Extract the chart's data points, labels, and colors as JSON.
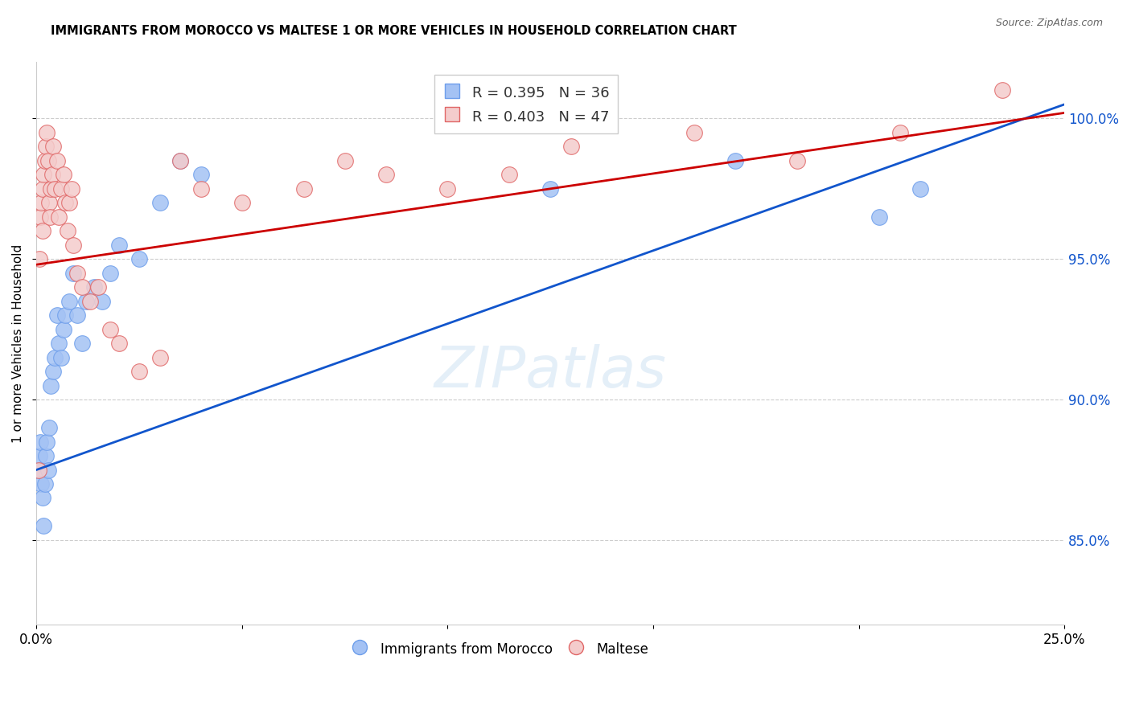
{
  "title": "IMMIGRANTS FROM MOROCCO VS MALTESE 1 OR MORE VEHICLES IN HOUSEHOLD CORRELATION CHART",
  "source": "Source: ZipAtlas.com",
  "ylabel": "1 or more Vehicles in Household",
  "xlim": [
    0.0,
    25.0
  ],
  "ylim": [
    82.0,
    102.0
  ],
  "yticks": [
    85.0,
    90.0,
    95.0,
    100.0
  ],
  "blue_color": "#a4c2f4",
  "pink_color": "#f4cccc",
  "blue_edge_color": "#6d9eeb",
  "pink_edge_color": "#e06666",
  "blue_line_color": "#1155cc",
  "pink_line_color": "#cc0000",
  "right_axis_color": "#1155cc",
  "legend1_label": "Immigrants from Morocco",
  "legend2_label": "Maltese",
  "blue_R": 0.395,
  "blue_N": 36,
  "pink_R": 0.403,
  "pink_N": 47,
  "blue_line_y0": 87.5,
  "blue_line_y1": 100.5,
  "pink_line_y0": 94.8,
  "pink_line_y1": 100.2,
  "blue_scatter_x": [
    0.05,
    0.08,
    0.1,
    0.12,
    0.15,
    0.18,
    0.2,
    0.22,
    0.25,
    0.28,
    0.3,
    0.35,
    0.4,
    0.45,
    0.5,
    0.55,
    0.6,
    0.65,
    0.7,
    0.8,
    0.9,
    1.0,
    1.1,
    1.2,
    1.4,
    1.6,
    1.8,
    2.0,
    2.5,
    3.0,
    3.5,
    4.0,
    12.5,
    17.0,
    20.5,
    21.5
  ],
  "blue_scatter_y": [
    87.5,
    88.0,
    88.5,
    87.0,
    86.5,
    85.5,
    87.0,
    88.0,
    88.5,
    87.5,
    89.0,
    90.5,
    91.0,
    91.5,
    93.0,
    92.0,
    91.5,
    92.5,
    93.0,
    93.5,
    94.5,
    93.0,
    92.0,
    93.5,
    94.0,
    93.5,
    94.5,
    95.5,
    95.0,
    97.0,
    98.5,
    98.0,
    97.5,
    98.5,
    96.5,
    97.5
  ],
  "pink_scatter_x": [
    0.05,
    0.08,
    0.1,
    0.12,
    0.15,
    0.15,
    0.18,
    0.2,
    0.22,
    0.25,
    0.28,
    0.3,
    0.32,
    0.35,
    0.38,
    0.4,
    0.45,
    0.5,
    0.55,
    0.6,
    0.65,
    0.7,
    0.75,
    0.8,
    0.85,
    0.9,
    1.0,
    1.1,
    1.3,
    1.5,
    1.8,
    2.0,
    2.5,
    3.0,
    3.5,
    4.0,
    5.0,
    6.5,
    7.5,
    8.5,
    10.0,
    11.5,
    13.0,
    16.0,
    18.5,
    21.0,
    23.5
  ],
  "pink_scatter_y": [
    87.5,
    95.0,
    96.5,
    97.0,
    96.0,
    97.5,
    98.0,
    98.5,
    99.0,
    99.5,
    98.5,
    97.0,
    96.5,
    97.5,
    98.0,
    99.0,
    97.5,
    98.5,
    96.5,
    97.5,
    98.0,
    97.0,
    96.0,
    97.0,
    97.5,
    95.5,
    94.5,
    94.0,
    93.5,
    94.0,
    92.5,
    92.0,
    91.0,
    91.5,
    98.5,
    97.5,
    97.0,
    97.5,
    98.5,
    98.0,
    97.5,
    98.0,
    99.0,
    99.5,
    98.5,
    99.5,
    101.0
  ]
}
